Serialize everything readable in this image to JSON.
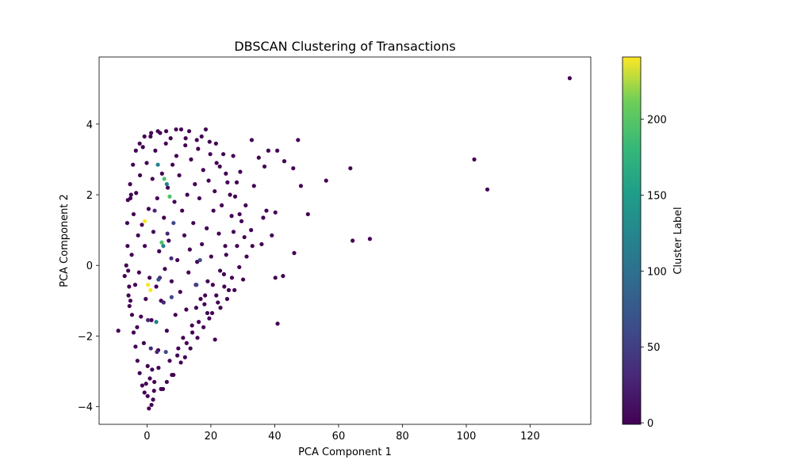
{
  "chart_data": {
    "type": "scatter",
    "title": "DBSCAN Clustering of Transactions",
    "xlabel": "PCA Component 1",
    "ylabel": "PCA Component 2",
    "xlim": [
      -15,
      139
    ],
    "ylim": [
      -4.5,
      5.9
    ],
    "xticks": [
      0,
      20,
      40,
      60,
      80,
      100,
      120
    ],
    "yticks": [
      -4,
      -2,
      0,
      2,
      4
    ],
    "grid": false,
    "colorbar": {
      "label": "Cluster Label",
      "min": -1,
      "max": 241,
      "ticks": [
        0,
        50,
        100,
        150,
        200
      ],
      "colormap": "viridis"
    },
    "colors": {
      "noise": "#440154",
      "low": "#3b528b",
      "mid": "#21918c",
      "high": "#5ec962",
      "top": "#fde725"
    },
    "series": [
      {
        "label": -1,
        "points": [
          [
            132.4,
            5.3
          ],
          [
            102.5,
            3.0
          ],
          [
            106.6,
            2.15
          ],
          [
            69.8,
            0.75
          ],
          [
            64.4,
            0.7
          ],
          [
            63.7,
            2.75
          ],
          [
            56.1,
            2.4
          ],
          [
            50.4,
            1.45
          ],
          [
            47.3,
            3.55
          ],
          [
            48.2,
            2.25
          ],
          [
            46.1,
            0.35
          ],
          [
            45.8,
            2.75
          ],
          [
            43.0,
            2.95
          ],
          [
            42.6,
            -0.3
          ],
          [
            40.2,
            -0.35
          ],
          [
            40.9,
            -1.65
          ],
          [
            40.2,
            1.5
          ],
          [
            40.8,
            3.25
          ],
          [
            38.0,
            3.25
          ],
          [
            37.4,
            1.55
          ],
          [
            39.1,
            0.85
          ],
          [
            36.4,
            1.35
          ],
          [
            35.9,
            0.6
          ],
          [
            36.8,
            2.8
          ],
          [
            35.0,
            3.05
          ],
          [
            33.5,
            2.25
          ],
          [
            33.0,
            0.55
          ],
          [
            32.8,
            3.55
          ],
          [
            30.5,
            0.8
          ],
          [
            29.6,
            1.25
          ],
          [
            28.2,
            0.55
          ],
          [
            27.0,
            3.1
          ],
          [
            26.5,
            1.4
          ],
          [
            26.0,
            2.0
          ],
          [
            25.6,
            -0.7
          ],
          [
            25.2,
            2.35
          ],
          [
            24.8,
            0.3
          ],
          [
            24.1,
            -0.25
          ],
          [
            23.4,
            1.7
          ],
          [
            22.8,
            2.8
          ],
          [
            22.5,
            0.9
          ],
          [
            21.7,
            -0.85
          ],
          [
            21.2,
            2.1
          ],
          [
            20.8,
            1.55
          ],
          [
            20.4,
            -1.35
          ],
          [
            20.1,
            0.25
          ],
          [
            19.6,
            3.5
          ],
          [
            19.3,
            2.4
          ],
          [
            19.0,
            -0.45
          ],
          [
            18.7,
            1.05
          ],
          [
            18.4,
            3.85
          ],
          [
            18.0,
            -1.1
          ],
          [
            17.6,
            2.7
          ],
          [
            17.2,
            0.6
          ],
          [
            16.8,
            -0.95
          ],
          [
            16.4,
            1.9
          ],
          [
            16.0,
            3.3
          ],
          [
            15.7,
            0.1
          ],
          [
            15.3,
            -0.55
          ],
          [
            15.0,
            2.3
          ],
          [
            21.3,
            -2.1
          ],
          [
            14.5,
            1.2
          ],
          [
            14.1,
            -1.7
          ],
          [
            13.8,
            3.0
          ],
          [
            13.4,
            0.45
          ],
          [
            13.0,
            -0.2
          ],
          [
            12.6,
            2.0
          ],
          [
            12.3,
            -1.25
          ],
          [
            12.0,
            3.4
          ],
          [
            11.7,
            0.85
          ],
          [
            11.3,
            -2.05
          ],
          [
            11.0,
            1.55
          ],
          [
            10.7,
            3.85
          ],
          [
            10.4,
            -0.75
          ],
          [
            10.1,
            2.55
          ],
          [
            9.8,
            -2.35
          ],
          [
            9.5,
            0.15
          ],
          [
            9.2,
            3.1
          ],
          [
            8.9,
            -1.4
          ],
          [
            8.6,
            1.8
          ],
          [
            8.3,
            -3.1
          ],
          [
            8.0,
            2.85
          ],
          [
            7.7,
            -0.45
          ],
          [
            7.4,
            3.6
          ],
          [
            7.1,
            -2.7
          ],
          [
            6.8,
            0.7
          ],
          [
            6.5,
            2.2
          ],
          [
            6.2,
            -1.85
          ],
          [
            5.9,
            3.45
          ],
          [
            5.6,
            -0.1
          ],
          [
            5.3,
            1.35
          ],
          [
            5.0,
            -3.5
          ],
          [
            4.7,
            2.6
          ],
          [
            4.4,
            -1.0
          ],
          [
            4.1,
            3.75
          ],
          [
            3.8,
            0.4
          ],
          [
            3.5,
            -2.4
          ],
          [
            3.2,
            1.9
          ],
          [
            2.9,
            -0.6
          ],
          [
            2.6,
            3.25
          ],
          [
            2.3,
            -3.3
          ],
          [
            2.0,
            0.95
          ],
          [
            1.7,
            2.45
          ],
          [
            1.4,
            -1.55
          ],
          [
            1.1,
            3.65
          ],
          [
            0.8,
            -0.35
          ],
          [
            0.5,
            1.6
          ],
          [
            0.2,
            -2.85
          ],
          [
            -0.1,
            2.9
          ],
          [
            -0.4,
            -0.95
          ],
          [
            -0.7,
            0.55
          ],
          [
            -1.0,
            -2.2
          ],
          [
            -1.3,
            3.35
          ],
          [
            -1.6,
            1.15
          ],
          [
            -1.9,
            -1.45
          ],
          [
            -2.2,
            2.55
          ],
          [
            -2.5,
            -0.2
          ],
          [
            -2.8,
            0.85
          ],
          [
            -3.1,
            -1.75
          ],
          [
            -3.4,
            2.05
          ],
          [
            -3.7,
            -0.55
          ],
          [
            -4.2,
            1.45
          ],
          [
            -4.8,
            0.3
          ],
          [
            -5.2,
            1.9
          ],
          [
            -5.8,
            -0.85
          ],
          [
            -5.5,
            -1.15
          ],
          [
            -5.0,
            2.0
          ],
          [
            -6.5,
            0.0
          ],
          [
            -7.0,
            -0.3
          ],
          [
            -9.0,
            -1.85
          ],
          [
            0.6,
            -4.05
          ],
          [
            1.4,
            -3.95
          ],
          [
            0.2,
            -3.7
          ],
          [
            1.9,
            -3.8
          ],
          [
            -0.3,
            -3.35
          ],
          [
            2.2,
            -3.55
          ],
          [
            0.9,
            -3.2
          ],
          [
            1.6,
            -2.95
          ],
          [
            3.6,
            -2.9
          ],
          [
            7.8,
            -3.1
          ],
          [
            9.5,
            -2.55
          ],
          [
            12.4,
            -2.2
          ],
          [
            14.2,
            -1.9
          ],
          [
            16.2,
            -1.6
          ],
          [
            18.9,
            -1.35
          ],
          [
            22.2,
            -1.05
          ],
          [
            24.2,
            -0.6
          ],
          [
            26.6,
            -0.35
          ],
          [
            28.9,
            -0.05
          ],
          [
            31.2,
            0.25
          ],
          [
            32.6,
            1.0
          ],
          [
            29.2,
            2.65
          ],
          [
            27.6,
            1.95
          ],
          [
            23.9,
            3.15
          ],
          [
            21.6,
            3.45
          ],
          [
            17.1,
            3.65
          ],
          [
            13.2,
            3.8
          ],
          [
            9.1,
            3.85
          ],
          [
            6.0,
            3.8
          ],
          [
            3.4,
            3.8
          ],
          [
            1.3,
            3.75
          ],
          [
            -0.8,
            3.65
          ],
          [
            -2.3,
            3.45
          ],
          [
            -3.5,
            3.25
          ],
          [
            -4.4,
            2.85
          ],
          [
            -5.3,
            2.3
          ],
          [
            -6.0,
            1.85
          ],
          [
            -6.2,
            1.2
          ],
          [
            -6.1,
            0.55
          ],
          [
            -5.9,
            -0.15
          ],
          [
            -5.6,
            -0.6
          ],
          [
            -5.2,
            -1.0
          ],
          [
            -4.7,
            -1.4
          ],
          [
            -4.2,
            -1.9
          ],
          [
            -3.6,
            -2.3
          ],
          [
            -3.0,
            -2.7
          ],
          [
            -2.3,
            -3.05
          ],
          [
            -1.5,
            -3.4
          ],
          [
            -0.8,
            -3.6
          ],
          [
            4.4,
            -3.5
          ],
          [
            6.2,
            -3.3
          ],
          [
            10.6,
            -2.75
          ],
          [
            11.9,
            -2.6
          ],
          [
            13.6,
            -2.35
          ],
          [
            15.8,
            -2.05
          ],
          [
            17.7,
            -1.75
          ],
          [
            19.5,
            -1.5
          ],
          [
            23.0,
            -1.2
          ],
          [
            25.1,
            -0.95
          ],
          [
            27.4,
            -0.7
          ],
          [
            30.1,
            -0.4
          ],
          [
            15.4,
            -1.2
          ],
          [
            18.2,
            -0.85
          ],
          [
            20.6,
            -0.55
          ],
          [
            22.9,
            -0.15
          ],
          [
            24.5,
            0.55
          ],
          [
            27.1,
            0.95
          ],
          [
            29.0,
            1.45
          ],
          [
            30.9,
            1.7
          ],
          [
            28.1,
            2.35
          ],
          [
            24.7,
            2.6
          ],
          [
            21.8,
            2.9
          ],
          [
            19.8,
            3.15
          ],
          [
            15.6,
            3.55
          ],
          [
            12.1,
            3.6
          ]
        ]
      },
      {
        "label": 30,
        "points": [
          [
            3.1,
            -2.45
          ],
          [
            5.2,
            -1.05
          ],
          [
            2.4,
            1.55
          ],
          [
            6.4,
            0.9
          ],
          [
            1.2,
            -2.35
          ],
          [
            4.0,
            -0.35
          ],
          [
            7.6,
            0.2
          ],
          [
            0.3,
            -1.55
          ]
        ]
      },
      {
        "label": 60,
        "points": [
          [
            5.9,
            -2.45
          ],
          [
            7.7,
            -0.9
          ],
          [
            15.5,
            -0.55
          ],
          [
            16.6,
            0.15
          ],
          [
            3.6,
            -0.4
          ],
          [
            8.3,
            1.2
          ]
        ]
      },
      {
        "label": 120,
        "points": [
          [
            6.2,
            2.3
          ],
          [
            5.1,
            0.55
          ],
          [
            3.4,
            2.85
          ],
          [
            2.9,
            -1.6
          ]
        ]
      },
      {
        "label": 195,
        "points": [
          [
            4.6,
            0.65
          ],
          [
            7.1,
            1.95
          ],
          [
            5.4,
            2.45
          ]
        ]
      },
      {
        "label": 240,
        "points": [
          [
            -0.7,
            1.25
          ],
          [
            0.3,
            -0.55
          ],
          [
            1.1,
            -0.7
          ]
        ]
      }
    ]
  }
}
